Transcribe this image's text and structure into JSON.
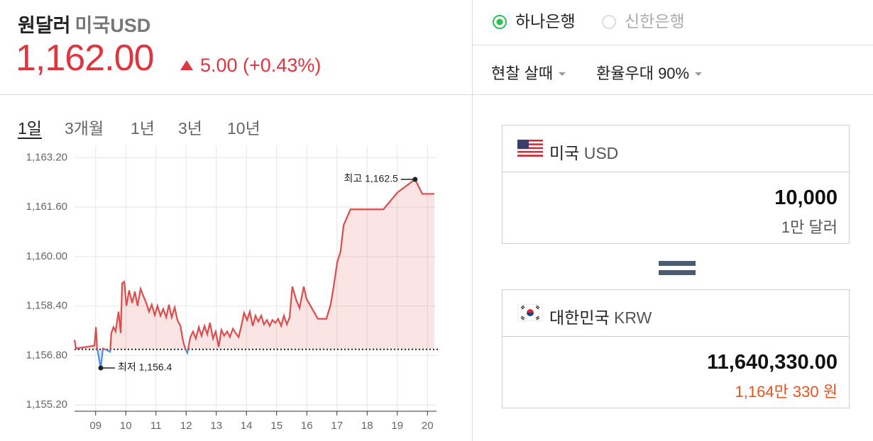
{
  "header": {
    "title": "원달러",
    "subtitle": "미국USD",
    "price": "1,162.00",
    "change": "5.00 (+0.43%)"
  },
  "tabs": [
    "1일",
    "3개월",
    "1년",
    "3년",
    "10년"
  ],
  "banks": [
    "하나은행",
    "신한은행"
  ],
  "options": [
    "현찰 살때",
    "환율우대 90%"
  ],
  "converter": {
    "from": {
      "country": "미국",
      "code": "USD",
      "amount": "10,000",
      "words": "1만 달러"
    },
    "to": {
      "country": "대한민국",
      "code": "KRW",
      "amount": "11,640,330.00",
      "words": "1,164만 330 원"
    }
  },
  "chart_data": {
    "type": "line",
    "color": "#dd4b4b",
    "negative_color": "#4a8ee6",
    "xlim": [
      8.3,
      20.3
    ],
    "ylim": [
      1155.0,
      1163.6
    ],
    "grid": true,
    "xticks": [
      {
        "value": 9,
        "label": "09"
      },
      10,
      11,
      12,
      13,
      14,
      15,
      16,
      17,
      18,
      19,
      20
    ],
    "yticks": [
      {
        "value": 1155.2,
        "label": "1,155.20"
      },
      {
        "value": 1156.8,
        "label": "1,156.80"
      },
      {
        "value": 1158.4,
        "label": "1,158.40"
      },
      {
        "value": 1160.0,
        "label": "1,160.00"
      },
      {
        "value": 1161.6,
        "label": "1,161.60"
      },
      {
        "value": 1163.2,
        "label": "1,163.20"
      }
    ],
    "reference_line": 1157.0,
    "x": [
      8.3,
      8.35,
      8.96,
      9.01,
      9.05,
      9.15,
      9.17,
      9.24,
      9.36,
      9.48,
      9.52,
      9.59,
      9.66,
      9.76,
      9.83,
      9.88,
      9.95,
      10.02,
      10.11,
      10.21,
      10.3,
      10.39,
      10.49,
      10.58,
      10.68,
      10.77,
      10.86,
      10.96,
      11.05,
      11.15,
      11.24,
      11.34,
      11.43,
      11.52,
      11.62,
      11.71,
      11.81,
      11.9,
      11.97,
      12.04,
      12.14,
      12.23,
      12.32,
      12.42,
      12.51,
      12.61,
      12.7,
      12.79,
      12.89,
      12.98,
      13.08,
      13.17,
      13.26,
      13.36,
      13.45,
      13.55,
      13.64,
      13.74,
      13.83,
      13.92,
      14.02,
      14.11,
      14.21,
      14.3,
      14.39,
      14.49,
      14.58,
      14.68,
      14.77,
      14.86,
      14.96,
      15.05,
      15.15,
      15.24,
      15.34,
      15.43,
      15.52,
      15.66,
      15.76,
      15.9,
      15.99,
      16.18,
      16.37,
      16.65,
      16.79,
      16.89,
      17.01,
      17.12,
      17.22,
      17.45,
      17.99,
      18.54,
      19.01,
      19.59,
      19.83,
      20.23
    ],
    "values": [
      1157.31,
      1157.03,
      1157.12,
      1157.72,
      1157.03,
      1156.5,
      1156.4,
      1157.03,
      1156.98,
      1156.92,
      1157.53,
      1157.72,
      1157.58,
      1158.22,
      1157.53,
      1159.14,
      1159.19,
      1158.41,
      1158.91,
      1158.5,
      1158.87,
      1158.41,
      1158.96,
      1158.73,
      1158.5,
      1158.22,
      1158.45,
      1158.11,
      1158.41,
      1158.09,
      1158.31,
      1158.04,
      1158.45,
      1158.04,
      1158.36,
      1157.95,
      1157.76,
      1157.26,
      1157.03,
      1156.89,
      1157.4,
      1157.58,
      1157.35,
      1157.72,
      1157.44,
      1157.76,
      1157.49,
      1157.86,
      1157.35,
      1157.58,
      1157.08,
      1157.63,
      1157.44,
      1157.58,
      1157.4,
      1157.67,
      1157.53,
      1157.4,
      1157.76,
      1158.18,
      1157.95,
      1158.22,
      1157.76,
      1158.09,
      1157.9,
      1158.09,
      1157.81,
      1157.95,
      1157.76,
      1157.95,
      1157.86,
      1157.99,
      1157.76,
      1158.09,
      1157.81,
      1158.04,
      1159.03,
      1158.57,
      1158.34,
      1159.03,
      1158.64,
      1158.31,
      1157.99,
      1157.99,
      1158.45,
      1159.03,
      1159.83,
      1160.17,
      1161.02,
      1161.53,
      1161.53,
      1161.53,
      1162.08,
      1162.5,
      1162.03,
      1162.03
    ],
    "annotations": [
      {
        "text": "최고 1,162.5",
        "x": 19.59,
        "y": 1162.5
      },
      {
        "text": "최저 1,156.4",
        "x": 9.17,
        "y": 1156.4
      }
    ]
  }
}
